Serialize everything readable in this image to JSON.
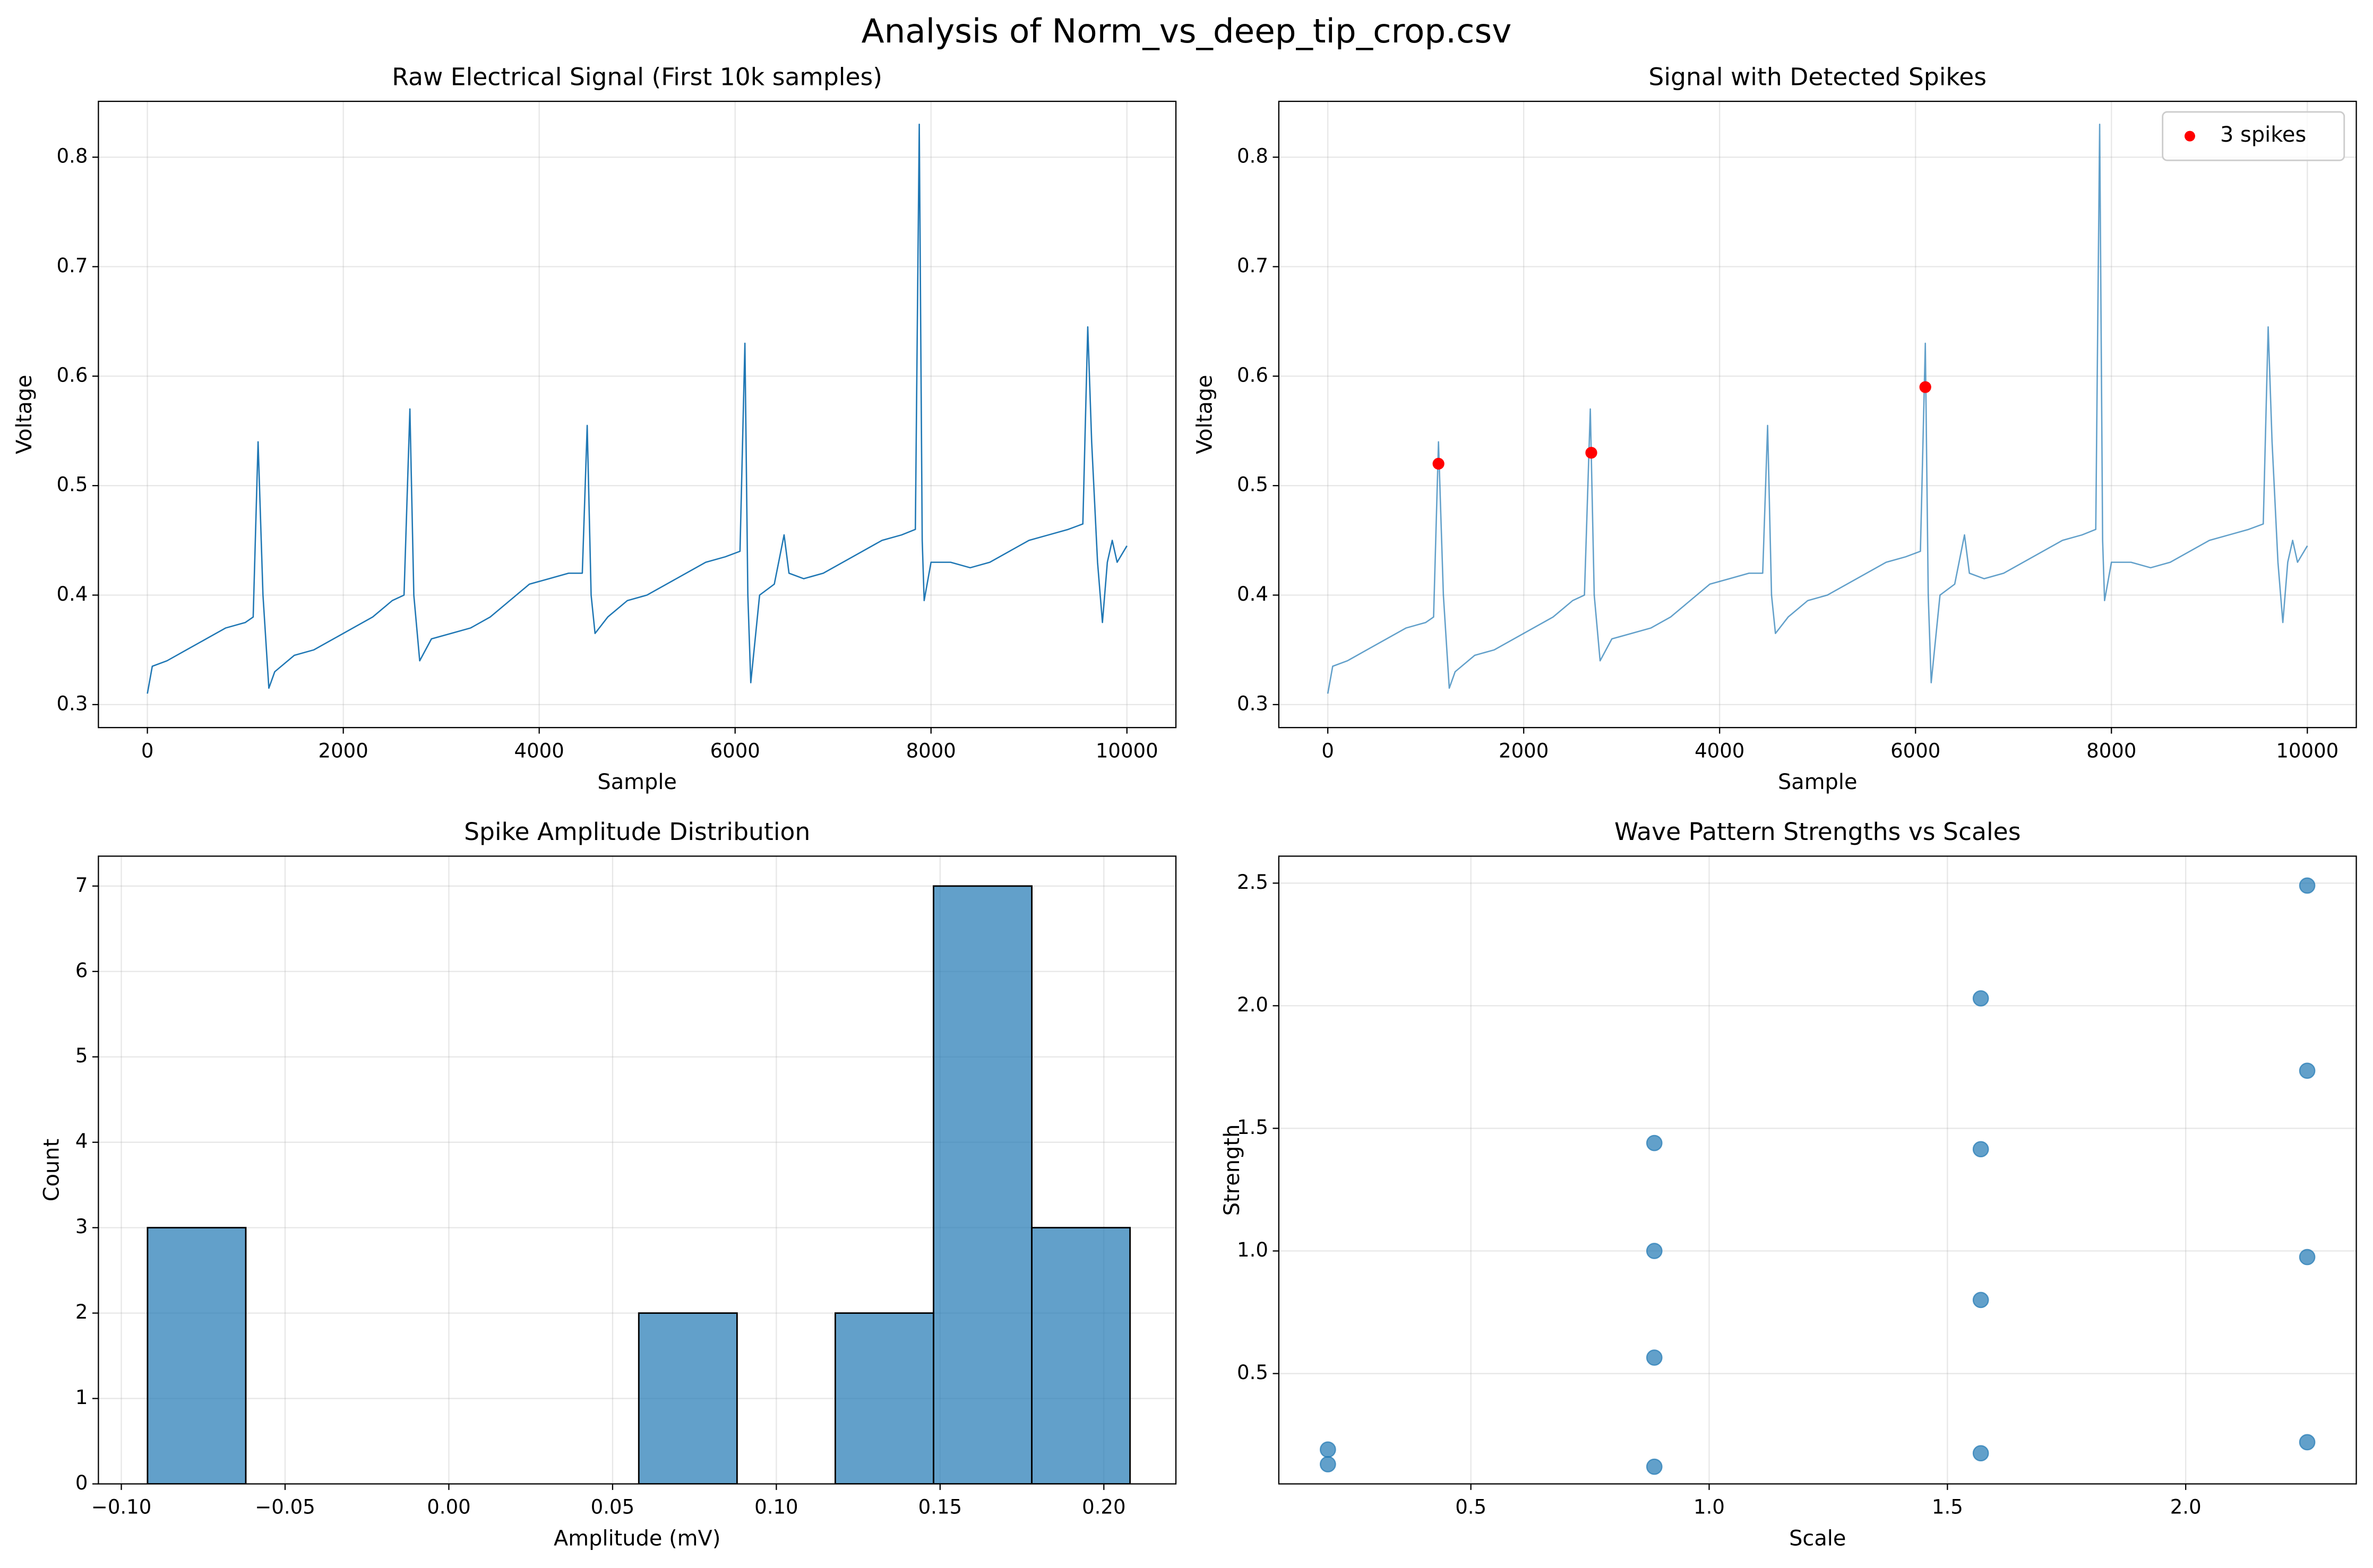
{
  "title": "Analysis of Norm_vs_deep_tip_crop.csv",
  "chart_data": [
    {
      "type": "line",
      "title": "Raw Electrical Signal (First 10k samples)",
      "xlabel": "Sample",
      "ylabel": "Voltage",
      "xlim": [
        -500,
        10500
      ],
      "ylim": [
        0.279,
        0.851
      ],
      "xticks": [
        0,
        2000,
        4000,
        6000,
        8000,
        10000
      ],
      "yticks": [
        0.3,
        0.4,
        0.5,
        0.6,
        0.7,
        0.8
      ],
      "grid": true,
      "series": [
        {
          "type": "line",
          "color": "#1f77b4",
          "opacity": 1,
          "x": [
            0,
            50,
            200,
            400,
            600,
            800,
            1000,
            1080,
            1130,
            1180,
            1240,
            1300,
            1500,
            1700,
            1900,
            2100,
            2300,
            2500,
            2620,
            2680,
            2720,
            2780,
            2900,
            3100,
            3300,
            3500,
            3700,
            3900,
            4100,
            4300,
            4440,
            4490,
            4530,
            4570,
            4700,
            4900,
            5100,
            5300,
            5500,
            5700,
            5900,
            6050,
            6100,
            6130,
            6160,
            6250,
            6400,
            6500,
            6550,
            6700,
            6900,
            7100,
            7300,
            7500,
            7700,
            7840,
            7880,
            7910,
            7930,
            8000,
            8200,
            8400,
            8600,
            8800,
            9000,
            9200,
            9400,
            9550,
            9600,
            9640,
            9700,
            9750,
            9800,
            9850,
            9900,
            10000
          ],
          "values": [
            0.31,
            0.335,
            0.34,
            0.35,
            0.36,
            0.37,
            0.375,
            0.38,
            0.54,
            0.4,
            0.315,
            0.33,
            0.345,
            0.35,
            0.36,
            0.37,
            0.38,
            0.395,
            0.4,
            0.57,
            0.4,
            0.34,
            0.36,
            0.365,
            0.37,
            0.38,
            0.395,
            0.41,
            0.415,
            0.42,
            0.42,
            0.555,
            0.4,
            0.365,
            0.38,
            0.395,
            0.4,
            0.41,
            0.42,
            0.43,
            0.435,
            0.44,
            0.63,
            0.4,
            0.32,
            0.4,
            0.41,
            0.455,
            0.42,
            0.415,
            0.42,
            0.43,
            0.44,
            0.45,
            0.455,
            0.46,
            0.83,
            0.45,
            0.395,
            0.43,
            0.43,
            0.425,
            0.43,
            0.44,
            0.45,
            0.455,
            0.46,
            0.465,
            0.645,
            0.54,
            0.43,
            0.375,
            0.43,
            0.45,
            0.43,
            0.445
          ]
        }
      ]
    },
    {
      "type": "line",
      "title": "Signal with Detected Spikes",
      "xlabel": "Sample",
      "ylabel": "Voltage",
      "xlim": [
        -500,
        10500
      ],
      "ylim": [
        0.279,
        0.851
      ],
      "xticks": [
        0,
        2000,
        4000,
        6000,
        8000,
        10000
      ],
      "yticks": [
        0.3,
        0.4,
        0.5,
        0.6,
        0.7,
        0.8
      ],
      "grid": true,
      "legend": "upper right",
      "series": [
        {
          "type": "line",
          "color": "#1f77b4",
          "opacity": 0.7,
          "x": [
            0,
            50,
            200,
            400,
            600,
            800,
            1000,
            1080,
            1130,
            1180,
            1240,
            1300,
            1500,
            1700,
            1900,
            2100,
            2300,
            2500,
            2620,
            2680,
            2720,
            2780,
            2900,
            3100,
            3300,
            3500,
            3700,
            3900,
            4100,
            4300,
            4440,
            4490,
            4530,
            4570,
            4700,
            4900,
            5100,
            5300,
            5500,
            5700,
            5900,
            6050,
            6100,
            6130,
            6160,
            6250,
            6400,
            6500,
            6550,
            6700,
            6900,
            7100,
            7300,
            7500,
            7700,
            7840,
            7880,
            7910,
            7930,
            8000,
            8200,
            8400,
            8600,
            8800,
            9000,
            9200,
            9400,
            9550,
            9600,
            9640,
            9700,
            9750,
            9800,
            9850,
            9900,
            10000
          ],
          "values": [
            0.31,
            0.335,
            0.34,
            0.35,
            0.36,
            0.37,
            0.375,
            0.38,
            0.54,
            0.4,
            0.315,
            0.33,
            0.345,
            0.35,
            0.36,
            0.37,
            0.38,
            0.395,
            0.4,
            0.57,
            0.4,
            0.34,
            0.36,
            0.365,
            0.37,
            0.38,
            0.395,
            0.41,
            0.415,
            0.42,
            0.42,
            0.555,
            0.4,
            0.365,
            0.38,
            0.395,
            0.4,
            0.41,
            0.42,
            0.43,
            0.435,
            0.44,
            0.63,
            0.4,
            0.32,
            0.4,
            0.41,
            0.455,
            0.42,
            0.415,
            0.42,
            0.43,
            0.44,
            0.45,
            0.455,
            0.46,
            0.83,
            0.45,
            0.395,
            0.43,
            0.43,
            0.425,
            0.43,
            0.44,
            0.45,
            0.455,
            0.46,
            0.465,
            0.645,
            0.54,
            0.43,
            0.375,
            0.43,
            0.45,
            0.43,
            0.445
          ]
        },
        {
          "type": "scatter",
          "name": "3 spikes",
          "color": "#ff0000",
          "x": [
            1130,
            2690,
            6100
          ],
          "values": [
            0.52,
            0.53,
            0.59
          ]
        }
      ]
    },
    {
      "type": "histogram",
      "title": "Spike Amplitude Distribution",
      "xlabel": "Amplitude (mV)",
      "ylabel": "Count",
      "xlim": [
        -0.107,
        0.222
      ],
      "ylim": [
        0,
        7.35
      ],
      "xticks": [
        {
          "value": -0.1,
          "label": "−0.10"
        },
        {
          "value": -0.05,
          "label": "−0.05"
        },
        {
          "value": 0,
          "label": "0.00"
        },
        {
          "value": 0.05,
          "label": "0.05"
        },
        {
          "value": 0.1,
          "label": "0.10"
        },
        {
          "value": 0.15,
          "label": "0.15"
        },
        {
          "value": 0.2,
          "label": "0.20"
        }
      ],
      "yticks": [
        0,
        1,
        2,
        3,
        4,
        5,
        6,
        7
      ],
      "grid": true,
      "color": "#1f77b4",
      "opacity": 0.7,
      "edgecolor": "#000000",
      "bins": [
        -0.092,
        -0.062,
        -0.032,
        -0.002,
        0.028,
        0.058,
        0.088,
        0.118,
        0.148,
        0.178,
        0.208
      ],
      "values": [
        3,
        0,
        0,
        0,
        0,
        2,
        0,
        2,
        7,
        3
      ]
    },
    {
      "type": "scatter",
      "title": "Wave Pattern Strengths vs Scales",
      "xlabel": "Scale",
      "ylabel": "Strength",
      "xlim": [
        0.097,
        2.358
      ],
      "ylim": [
        0.05,
        2.61
      ],
      "xticks": [
        0.5,
        {
          "value": 1,
          "label": "1.0"
        },
        1.5,
        {
          "value": 2,
          "label": "2.0"
        }
      ],
      "yticks": [
        0.5,
        {
          "value": 1,
          "label": "1.0"
        },
        1.5,
        {
          "value": 2,
          "label": "2.0"
        },
        2.5
      ],
      "grid": true,
      "series": [
        {
          "type": "scatter",
          "color": "#1f77b4",
          "opacity": 0.7,
          "x": [
            0.2,
            0.2,
            0.885,
            0.885,
            0.885,
            0.885,
            1.57,
            1.57,
            1.57,
            1.57,
            2.255,
            2.255,
            2.255,
            2.255
          ],
          "values": [
            0.19,
            0.13,
            1.44,
            1.0,
            0.565,
            0.12,
            2.03,
            1.415,
            0.8,
            0.175,
            2.49,
            1.735,
            0.975,
            0.22
          ]
        }
      ]
    }
  ]
}
